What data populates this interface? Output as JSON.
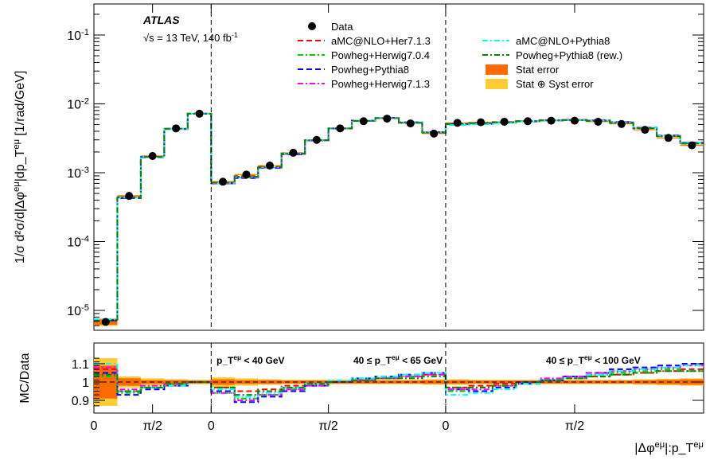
{
  "chart_data": [
    {
      "type": "line",
      "panel": "main",
      "yscale": "log",
      "ylim": [
        5e-06,
        0.3
      ],
      "ylabel": "1/σ d²σ/d|Δφ^{eμ}|dp_T^{eμ} [1/rad/GeV]",
      "y_ticks": [
        "10^{-5}",
        "10^{-4}",
        "10^{-3}",
        "10^{-2}",
        "10^{-1}"
      ],
      "experiment": "ATLAS",
      "energy_label": "√s = 13 TeV, 140 fb^{-1}",
      "data": [
        6.8e-06,
        0.00046,
        0.00175,
        0.0044,
        0.0072,
        0.00074,
        0.00094,
        0.00127,
        0.00195,
        0.003,
        0.0044,
        0.0056,
        0.0061,
        0.0052,
        0.0037,
        0.0053,
        0.0054,
        0.0055,
        0.0056,
        0.0057,
        0.0057,
        0.0055,
        0.0051,
        0.0042,
        0.0032,
        0.0025
      ],
      "legend": [
        {
          "label": "Data",
          "style": "marker"
        },
        {
          "label": "aMC@NLO+Her7.1.3",
          "style": "dash",
          "color": "#ff0000"
        },
        {
          "label": "Powheg+Herwig7.0.4",
          "style": "dashdot",
          "color": "#00cc00"
        },
        {
          "label": "Powheg+Pythia8",
          "style": "dash",
          "color": "#0000ff"
        },
        {
          "label": "Powheg+Herwig7.1.3",
          "style": "dashdot",
          "color": "#ff00ff"
        },
        {
          "label": "aMC@NLO+Pythia8",
          "style": "dashdot",
          "color": "#00ffff"
        },
        {
          "label": "Powheg+Pythia8 (rew.)",
          "style": "dashdot",
          "color": "#008800"
        },
        {
          "label": "Stat error",
          "style": "box",
          "color": "#ff6a00"
        },
        {
          "label": "Stat ⊕ Syst error",
          "style": "box",
          "color": "#ffcc33"
        }
      ]
    },
    {
      "type": "line",
      "panel": "ratio",
      "ylabel": "MC/Data",
      "ylim": [
        0.85,
        1.15
      ],
      "y_ticks": [
        "0.9",
        "1",
        "1.1"
      ],
      "x_tick_labels": [
        "0",
        "π/2",
        "0",
        "π/2",
        "0",
        "π/2"
      ],
      "xlabel": "|Δφ^{eμ}|:p_T^{eμ}",
      "region_labels": [
        "p_T^{eμ} < 40 GeV",
        "40 ≤ p_T^{eμ} < 65 GeV",
        "40 ≤ p_T^{eμ} < 100 GeV"
      ],
      "stat_err": [
        0.09,
        0.02,
        0.01,
        0.01,
        0.008,
        0.015,
        0.01,
        0.01,
        0.008,
        0.008,
        0.008,
        0.008,
        0.008,
        0.008,
        0.01,
        0.01,
        0.008,
        0.008,
        0.008,
        0.008,
        0.008,
        0.008,
        0.008,
        0.01,
        0.012,
        0.015
      ],
      "syst_err": [
        0.13,
        0.03,
        0.02,
        0.015,
        0.012,
        0.025,
        0.02,
        0.015,
        0.012,
        0.012,
        0.012,
        0.012,
        0.012,
        0.012,
        0.015,
        0.015,
        0.012,
        0.012,
        0.012,
        0.012,
        0.012,
        0.012,
        0.012,
        0.015,
        0.018,
        0.02
      ],
      "series": [
        {
          "name": "aMC@NLO+Her7.1.3",
          "values": [
            1.07,
            0.95,
            0.97,
            0.98,
            1.0,
            0.97,
            0.95,
            0.96,
            0.98,
            0.99,
            1.0,
            1.01,
            1.02,
            1.03,
            1.04,
            0.97,
            0.98,
            0.99,
            1.0,
            1.01,
            1.02,
            1.03,
            1.04,
            1.05,
            1.06,
            1.07
          ]
        },
        {
          "name": "Powheg+Herwig7.0.4",
          "values": [
            1.03,
            0.94,
            0.97,
            0.99,
            1.0,
            0.94,
            0.91,
            0.93,
            0.96,
            0.98,
            1.0,
            1.01,
            1.02,
            1.03,
            1.05,
            0.95,
            0.97,
            0.98,
            1.0,
            1.01,
            1.02,
            1.04,
            1.05,
            1.06,
            1.07,
            1.06
          ]
        },
        {
          "name": "Powheg+Pythia8",
          "values": [
            1.05,
            0.93,
            0.96,
            0.98,
            1.0,
            0.95,
            0.89,
            0.92,
            0.95,
            0.98,
            1.0,
            1.02,
            1.03,
            1.04,
            1.05,
            0.96,
            0.95,
            0.97,
            0.99,
            1.01,
            1.03,
            1.05,
            1.07,
            1.08,
            1.09,
            1.1
          ]
        },
        {
          "name": "Powheg+Herwig7.1.3",
          "values": [
            1.08,
            0.96,
            0.98,
            0.99,
            1.0,
            0.94,
            0.9,
            0.93,
            0.96,
            0.98,
            1.0,
            1.01,
            1.02,
            1.03,
            1.04,
            0.96,
            0.96,
            0.98,
            1.0,
            1.02,
            1.03,
            1.05,
            1.06,
            1.07,
            1.08,
            1.09
          ]
        },
        {
          "name": "aMC@NLO+Pythia8",
          "values": [
            1.1,
            0.95,
            0.97,
            0.98,
            1.0,
            0.96,
            0.92,
            0.94,
            0.97,
            0.99,
            1.01,
            1.02,
            1.03,
            1.04,
            1.05,
            0.93,
            0.94,
            0.96,
            0.99,
            1.01,
            1.02,
            1.04,
            1.06,
            1.07,
            1.08,
            1.09
          ]
        },
        {
          "name": "Powheg+Pythia8 (rew.)",
          "values": [
            1.04,
            0.95,
            0.97,
            0.99,
            1.0,
            0.97,
            0.93,
            0.95,
            0.97,
            0.99,
            1.0,
            1.01,
            1.02,
            1.02,
            1.03,
            0.97,
            0.97,
            0.98,
            1.0,
            1.01,
            1.02,
            1.03,
            1.04,
            1.05,
            1.06,
            1.06
          ]
        }
      ]
    }
  ]
}
